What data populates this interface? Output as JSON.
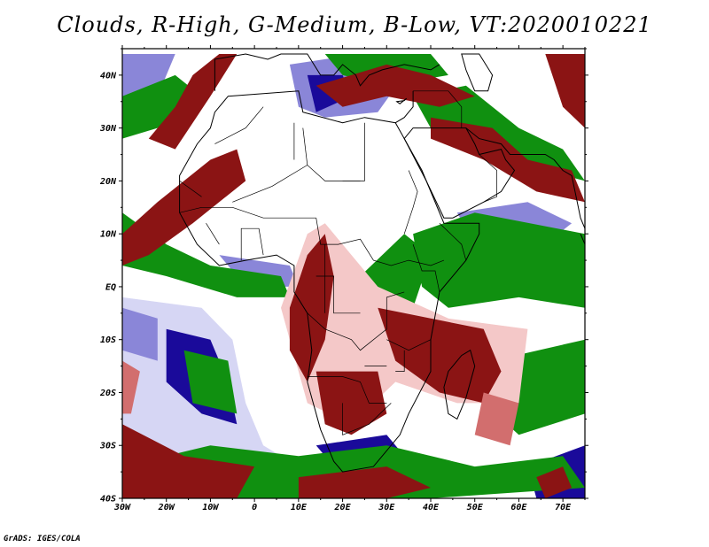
{
  "title": "Clouds, R-High, G-Medium, B-Low, VT:2020010221",
  "credit": "GrADS: IGES/COLA",
  "map": {
    "lon_range": [
      -30,
      75
    ],
    "lat_range": [
      -40,
      45
    ],
    "lat_labels": [
      {
        "lat": 40,
        "text": "40N"
      },
      {
        "lat": 30,
        "text": "30N"
      },
      {
        "lat": 20,
        "text": "20N"
      },
      {
        "lat": 10,
        "text": "10N"
      },
      {
        "lat": 0,
        "text": "EQ"
      },
      {
        "lat": -10,
        "text": "10S"
      },
      {
        "lat": -20,
        "text": "20S"
      },
      {
        "lat": -30,
        "text": "30S"
      },
      {
        "lat": -40,
        "text": "40S"
      }
    ],
    "lon_labels": [
      {
        "lon": -30,
        "text": "30W"
      },
      {
        "lon": -20,
        "text": "20W"
      },
      {
        "lon": -10,
        "text": "10W"
      },
      {
        "lon": 0,
        "text": "0"
      },
      {
        "lon": 10,
        "text": "10E"
      },
      {
        "lon": 20,
        "text": "20E"
      },
      {
        "lon": 30,
        "text": "30E"
      },
      {
        "lon": 40,
        "text": "40E"
      },
      {
        "lon": 50,
        "text": "50E"
      },
      {
        "lon": 60,
        "text": "60E"
      },
      {
        "lon": 70,
        "text": "70E"
      }
    ],
    "colors": {
      "high": "#8b1414",
      "high_light": "#d26e6e",
      "high_pale": "#f4c8c8",
      "medium": "#109010",
      "low": "#1a0a9a",
      "low_light": "#8a86d8",
      "low_pale": "#d6d6f4",
      "coast": "#000000"
    }
  }
}
